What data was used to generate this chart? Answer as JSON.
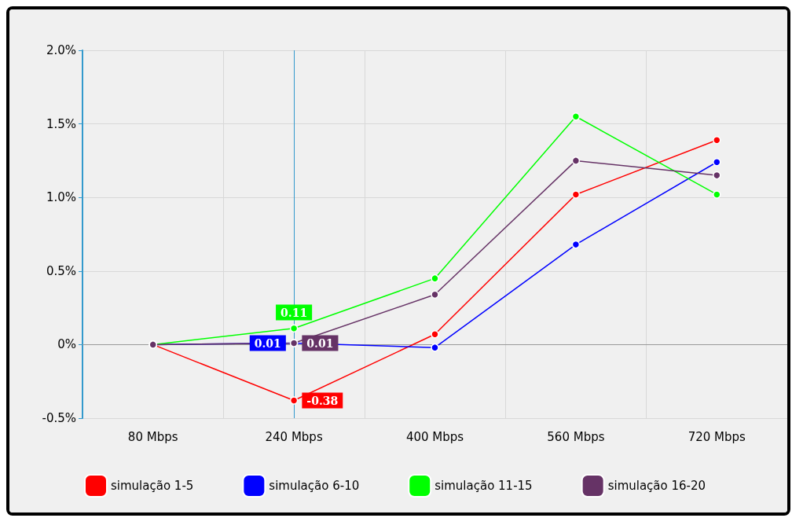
{
  "chart_data": {
    "type": "line",
    "categories": [
      "80 Mbps",
      "240 Mbps",
      "400 Mbps",
      "560 Mbps",
      "720 Mbps"
    ],
    "series": [
      {
        "name": "simulação 1-5",
        "color": "#ff0000",
        "values": [
          0,
          -0.38,
          0.07,
          1.02,
          1.39
        ],
        "value_labels": [
          null,
          "-0.38",
          null,
          null,
          null
        ]
      },
      {
        "name": "simulação 6-10",
        "color": "#0000ff",
        "values": [
          0,
          0.01,
          -0.02,
          0.68,
          1.24
        ],
        "value_labels": [
          null,
          "0.01",
          null,
          null,
          null
        ]
      },
      {
        "name": "simulação 11-15",
        "color": "#00ff00",
        "values": [
          0,
          0.11,
          0.45,
          1.55,
          1.02
        ],
        "value_labels": [
          null,
          "0.11",
          null,
          null,
          null
        ]
      },
      {
        "name": "simulação 16-20",
        "color": "#663366",
        "values": [
          0,
          0.01,
          0.34,
          1.25,
          1.15
        ],
        "value_labels": [
          null,
          "0.01",
          null,
          null,
          null
        ]
      }
    ],
    "ylim": [
      -0.5,
      2.0
    ],
    "yticks": [
      {
        "value": -0.5,
        "label": "-0.5%"
      },
      {
        "value": 0,
        "label": "0%"
      },
      {
        "value": 0.5,
        "label": "0.5%"
      },
      {
        "value": 1.0,
        "label": "1.0%"
      },
      {
        "value": 1.5,
        "label": "1.5%"
      },
      {
        "value": 2.0,
        "label": "2.0%"
      }
    ],
    "ref_lines": [
      {
        "axis": "y",
        "value": 0,
        "color": "#999999"
      },
      {
        "axis": "x",
        "value": "240 Mbps",
        "color": "#3399cc"
      }
    ],
    "grid": true,
    "legend": "bottom",
    "marker": "circle",
    "line_style": "solid"
  }
}
